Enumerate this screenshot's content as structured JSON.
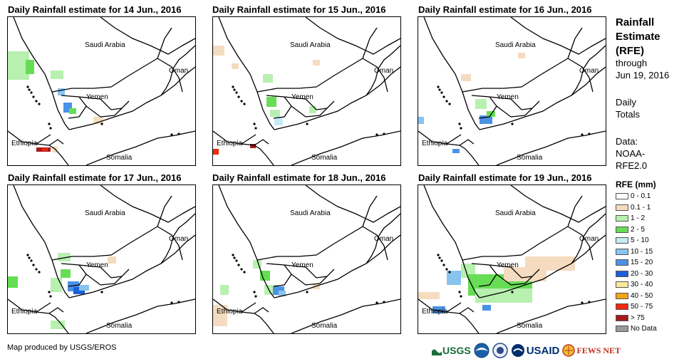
{
  "panels": [
    {
      "title": "Daily Rainfall estimate for 14 Jun., 2016"
    },
    {
      "title": "Daily Rainfall estimate for 15 Jun., 2016"
    },
    {
      "title": "Daily Rainfall estimate for 16 Jun., 2016"
    },
    {
      "title": "Daily Rainfall estimate for 17 Jun., 2016"
    },
    {
      "title": "Daily Rainfall estimate for 18 Jun., 2016"
    },
    {
      "title": "Daily Rainfall estimate for 19 Jun., 2016"
    }
  ],
  "map_labels": {
    "saudi": "Saudi Arabia",
    "oman": "Oman",
    "yemen": "Yemen",
    "ethiopia": "Ethiopia",
    "somalia": "Somalia"
  },
  "side": {
    "title_line1": "Rainfall",
    "title_line2": "Estimate",
    "title_line3": "(RFE)",
    "through": "through",
    "date": "Jun 19, 2016",
    "daily": "Daily",
    "totals": "Totals",
    "data_label": "Data:",
    "source1": "NOAA-",
    "source2": "RFE2.0"
  },
  "legend": {
    "title": "RFE (mm)",
    "items": [
      {
        "label": "0 - 0.1",
        "color": "#ffffff"
      },
      {
        "label": "0.1 - 1",
        "color": "#f5dcc0"
      },
      {
        "label": "1 - 2",
        "color": "#b8f0b0"
      },
      {
        "label": "2 - 5",
        "color": "#66dd55"
      },
      {
        "label": "5 - 10",
        "color": "#c5ecf5"
      },
      {
        "label": "10 - 15",
        "color": "#88c4ee"
      },
      {
        "label": "15 - 20",
        "color": "#4a92e6"
      },
      {
        "label": "20 - 30",
        "color": "#1e5fd8"
      },
      {
        "label": "30 - 40",
        "color": "#fbe89a"
      },
      {
        "label": "40 - 50",
        "color": "#f5a418"
      },
      {
        "label": "50 - 75",
        "color": "#ee2a10"
      },
      {
        "label": "> 75",
        "color": "#a61a1a"
      },
      {
        "label": "No Data",
        "color": "#9a9a9a"
      }
    ]
  },
  "footer": "Map produced by USGS/EROS",
  "logos": {
    "usgs": "USGS",
    "usaid": "USAID",
    "fewsnet": "FEWS NET"
  }
}
